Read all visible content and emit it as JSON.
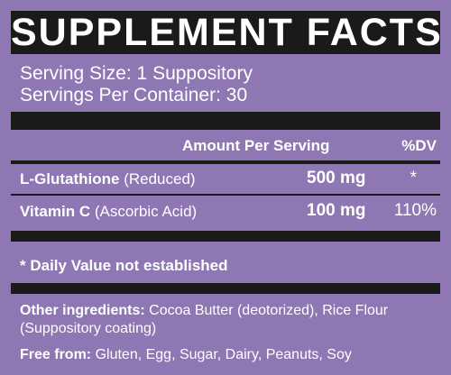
{
  "title": "SUPPLEMENT FACTS",
  "serving_size": "Serving Size: 1 Suppository",
  "servings_per_container": "Servings Per Container: 30",
  "table_header": {
    "amount": "Amount Per Serving",
    "dv": "%DV"
  },
  "nutrients": [
    {
      "name": "L-Glutathione",
      "detail": " (Reduced)",
      "amount": "500 mg",
      "dv": "*"
    },
    {
      "name": "Vitamin C",
      "detail": " (Ascorbic Acid)",
      "amount": "100 mg",
      "dv": "110%"
    }
  ],
  "footnote": "* Daily Value not established",
  "other_ingredients": {
    "label": "Other ingredients:",
    "text": " Cocoa Butter (deotorized), Rice Flour (Suppository coating)"
  },
  "free_from": {
    "label": "Free from:",
    "text": " Gluten, Egg, Sugar, Dairy, Peanuts, Soy"
  },
  "colors": {
    "background": "#8e77b3",
    "band": "#1a1a1a",
    "text": "#ffffff"
  }
}
